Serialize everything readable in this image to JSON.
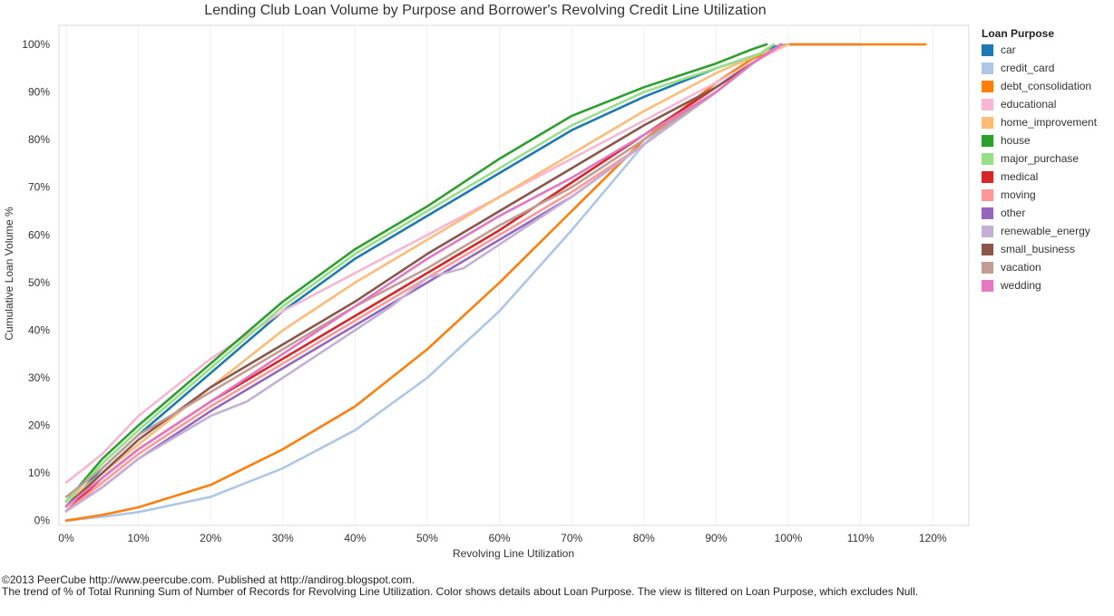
{
  "chart_data": {
    "type": "line",
    "title": "Lending Club Loan Volume by Purpose and Borrower's Revolving Credit Line Utilization",
    "xlabel": "Revolving Line Utilization",
    "ylabel": "Cumulative Loan Volume %",
    "xlim": [
      -1,
      125
    ],
    "ylim": [
      -1,
      104
    ],
    "xticks": [
      0,
      10,
      20,
      30,
      40,
      50,
      60,
      70,
      80,
      90,
      100,
      110,
      120
    ],
    "xtick_labels": [
      "0%",
      "10%",
      "20%",
      "30%",
      "40%",
      "50%",
      "60%",
      "70%",
      "80%",
      "90%",
      "100%",
      "110%",
      "120%"
    ],
    "yticks": [
      0,
      10,
      20,
      30,
      40,
      50,
      60,
      70,
      80,
      90,
      100
    ],
    "ytick_labels": [
      "0%",
      "10%",
      "20%",
      "30%",
      "40%",
      "50%",
      "60%",
      "70%",
      "80%",
      "90%",
      "100%"
    ],
    "grid": true,
    "legend_title": "Loan Purpose",
    "legend_position": "right",
    "series": [
      {
        "name": "car",
        "color": "#1f77b4",
        "x": [
          0,
          5,
          10,
          20,
          30,
          40,
          50,
          60,
          70,
          80,
          90,
          96,
          98,
          100,
          110
        ],
        "y": [
          3,
          11,
          18,
          31,
          44,
          55,
          64,
          73,
          82,
          89,
          95,
          98,
          99.5,
          100,
          100
        ]
      },
      {
        "name": "credit_card",
        "color": "#aec7e8",
        "x": [
          0,
          5,
          10,
          20,
          30,
          40,
          50,
          60,
          70,
          80,
          90,
          95,
          100
        ],
        "y": [
          0,
          0.8,
          1.8,
          5,
          11,
          19,
          30,
          44,
          61,
          79,
          92,
          97,
          100
        ]
      },
      {
        "name": "debt_consolidation",
        "color": "#ff7f0e",
        "x": [
          0,
          5,
          10,
          20,
          30,
          40,
          50,
          60,
          70,
          80,
          90,
          95,
          100,
          110,
          119
        ],
        "y": [
          0,
          1.2,
          2.8,
          7.5,
          15,
          24,
          36,
          50,
          65,
          80,
          92,
          97,
          100,
          100,
          100
        ]
      },
      {
        "name": "educational",
        "color": "#f7b6d2",
        "x": [
          0,
          5,
          10,
          20,
          30,
          40,
          50,
          60,
          70,
          80,
          90,
          96,
          100
        ],
        "y": [
          8,
          14,
          22,
          34,
          44,
          52,
          60,
          68,
          76,
          84,
          92,
          97,
          100
        ]
      },
      {
        "name": "home_improvement",
        "color": "#ffbb78",
        "x": [
          0,
          5,
          10,
          20,
          30,
          40,
          50,
          60,
          70,
          80,
          90,
          96,
          100
        ],
        "y": [
          4,
          10,
          16,
          28,
          40,
          50,
          59,
          68,
          77,
          86,
          94,
          98,
          100
        ]
      },
      {
        "name": "house",
        "color": "#2ca02c",
        "x": [
          0,
          5,
          10,
          20,
          30,
          40,
          50,
          60,
          70,
          80,
          90,
          95,
          97
        ],
        "y": [
          4,
          13,
          20,
          33,
          46,
          57,
          66,
          76,
          85,
          91,
          96,
          99,
          100
        ]
      },
      {
        "name": "major_purchase",
        "color": "#98df8a",
        "x": [
          0,
          5,
          10,
          20,
          30,
          40,
          50,
          60,
          70,
          80,
          90,
          96,
          98
        ],
        "y": [
          4,
          12,
          19,
          32,
          45,
          56,
          65,
          74,
          83,
          90,
          95,
          98,
          100
        ]
      },
      {
        "name": "medical",
        "color": "#d62728",
        "x": [
          0,
          5,
          10,
          20,
          30,
          40,
          50,
          60,
          70,
          80,
          90,
          95,
          99
        ],
        "y": [
          2,
          9,
          15,
          25,
          34,
          43,
          52,
          61,
          71,
          81,
          91,
          96,
          100
        ]
      },
      {
        "name": "moving",
        "color": "#ff9896",
        "x": [
          0,
          5,
          10,
          20,
          30,
          40,
          50,
          60,
          70,
          80,
          90,
          95,
          99
        ],
        "y": [
          2,
          8,
          14,
          24,
          33,
          42,
          51,
          60,
          69,
          79,
          90,
          96,
          100
        ]
      },
      {
        "name": "other",
        "color": "#9467bd",
        "x": [
          0,
          5,
          10,
          20,
          30,
          40,
          50,
          60,
          70,
          80,
          90,
          95,
          99
        ],
        "y": [
          2,
          7,
          13,
          23,
          32,
          41,
          50,
          59,
          68,
          79,
          90,
          96,
          100
        ]
      },
      {
        "name": "renewable_energy",
        "color": "#c5b0d5",
        "x": [
          0,
          5,
          10,
          20,
          25,
          30,
          35,
          40,
          45,
          50,
          55,
          60,
          65,
          70,
          80,
          90,
          95,
          99
        ],
        "y": [
          2,
          7,
          13,
          22,
          25,
          30,
          35,
          40,
          45,
          51,
          53,
          58,
          63,
          68,
          79,
          90,
          96,
          100
        ]
      },
      {
        "name": "small_business",
        "color": "#8c564b",
        "x": [
          0,
          5,
          10,
          20,
          30,
          40,
          50,
          60,
          70,
          80,
          90,
          95,
          99
        ],
        "y": [
          3,
          10,
          17,
          28,
          37,
          46,
          56,
          65,
          74,
          83,
          91,
          96,
          100
        ]
      },
      {
        "name": "vacation",
        "color": "#c49c94",
        "x": [
          0,
          5,
          10,
          20,
          30,
          40,
          50,
          60,
          70,
          80,
          90,
          95,
          99
        ],
        "y": [
          5,
          11,
          18,
          27,
          36,
          45,
          53,
          62,
          70,
          80,
          90,
          96,
          100
        ]
      },
      {
        "name": "wedding",
        "color": "#e377c2",
        "x": [
          0,
          5,
          10,
          20,
          30,
          40,
          50,
          60,
          70,
          80,
          90,
          95,
          99
        ],
        "y": [
          3,
          9,
          15,
          25,
          35,
          45,
          55,
          64,
          72,
          81,
          90,
          96,
          100
        ]
      }
    ]
  },
  "footer": {
    "line1": "©2013  PeerCube http://www.peercube.com. Published at http://andirog.blogspot.com.",
    "line2": "The trend of % of Total Running Sum of Number of Records for Revolving Line Utilization.  Color shows details about Loan Purpose. The view is filtered on Loan Purpose, which excludes Null."
  }
}
